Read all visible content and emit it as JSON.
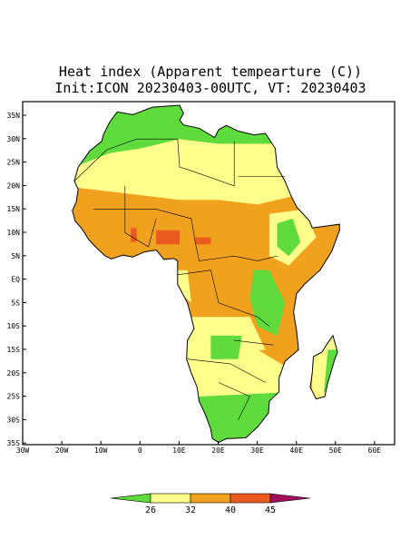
{
  "title": "Heat index (Apparent tempearture (C))",
  "subtitle": "Init:ICON 20230403-00UTC, VT: 20230403",
  "lat_labels": [
    "35N",
    "30N",
    "25N",
    "20N",
    "15N",
    "10N",
    "5N",
    "EQ",
    "5S",
    "10S",
    "15S",
    "20S",
    "25S",
    "30S",
    "35S"
  ],
  "lon_labels": [
    "30W",
    "20W",
    "10W",
    "0",
    "10E",
    "20E",
    "30E",
    "40E",
    "50E",
    "60E"
  ],
  "colorbar": {
    "levels": [
      26,
      32,
      40,
      45
    ],
    "colors": [
      "#5fdc3c",
      "#ffff8c",
      "#f0a21e",
      "#ea5a1e",
      "#a0105a"
    ]
  }
}
